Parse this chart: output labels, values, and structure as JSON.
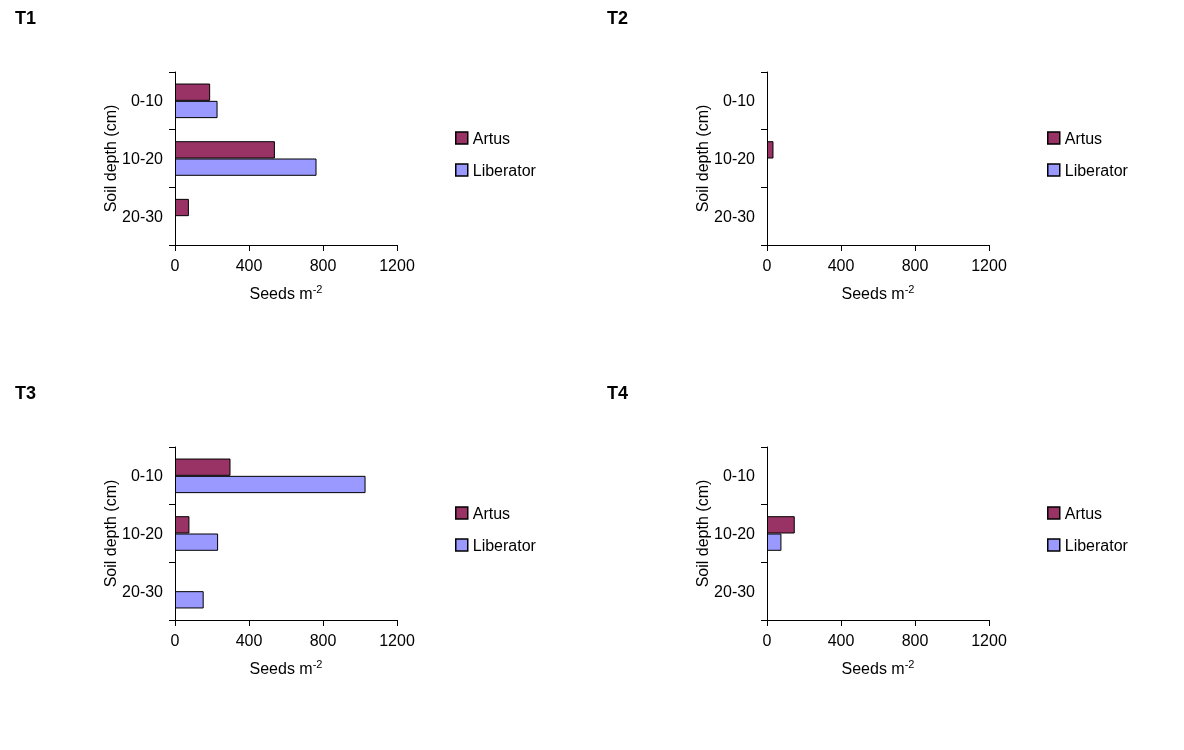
{
  "chart_data": [
    {
      "type": "bar",
      "orientation": "horizontal",
      "title": "T1",
      "xlabel": "Seeds m$^{-2}$",
      "ylabel": "Soil depth (cm)",
      "categories": [
        "0-10",
        "10-20",
        "20-30"
      ],
      "xlim": [
        0,
        1200
      ],
      "xticks": [
        0,
        400,
        800,
        1200
      ],
      "grid": false,
      "legend": "right",
      "series": [
        {
          "name": "Artus",
          "color": "#993366",
          "values": [
            190,
            540,
            75
          ]
        },
        {
          "name": "Liberator",
          "color": "#9999ff",
          "values": [
            230,
            765,
            null
          ]
        }
      ]
    },
    {
      "type": "bar",
      "orientation": "horizontal",
      "title": "T2",
      "xlabel": "Seeds m$^{-2}$",
      "ylabel": "Soil depth (cm)",
      "categories": [
        "0-10",
        "10-20",
        "20-30"
      ],
      "xlim": [
        0,
        1200
      ],
      "xticks": [
        0,
        400,
        800,
        1200
      ],
      "grid": false,
      "legend": "right",
      "series": [
        {
          "name": "Artus",
          "color": "#993366",
          "values": [
            null,
            35,
            null
          ]
        },
        {
          "name": "Liberator",
          "color": "#9999ff",
          "values": [
            null,
            null,
            null
          ]
        }
      ]
    },
    {
      "type": "bar",
      "orientation": "horizontal",
      "title": "T3",
      "xlabel": "Seeds m$^{-2}$",
      "ylabel": "Soil depth (cm)",
      "categories": [
        "0-10",
        "10-20",
        "20-30"
      ],
      "xlim": [
        0,
        1200
      ],
      "xticks": [
        0,
        400,
        800,
        1200
      ],
      "grid": false,
      "legend": "right",
      "series": [
        {
          "name": "Artus",
          "color": "#993366",
          "values": [
            300,
            78,
            null
          ]
        },
        {
          "name": "Liberator",
          "color": "#9999ff",
          "values": [
            1030,
            233,
            155
          ]
        }
      ]
    },
    {
      "type": "bar",
      "orientation": "horizontal",
      "title": "T4",
      "xlabel": "Seeds m$^{-2}$",
      "ylabel": "Soil depth (cm)",
      "categories": [
        "0-10",
        "10-20",
        "20-30"
      ],
      "xlim": [
        0,
        1200
      ],
      "xticks": [
        0,
        400,
        800,
        1200
      ],
      "grid": false,
      "legend": "right",
      "series": [
        {
          "name": "Artus",
          "color": "#993366",
          "values": [
            null,
            150,
            null
          ]
        },
        {
          "name": "Liberator",
          "color": "#9999ff",
          "values": [
            null,
            78,
            null
          ]
        }
      ]
    }
  ]
}
